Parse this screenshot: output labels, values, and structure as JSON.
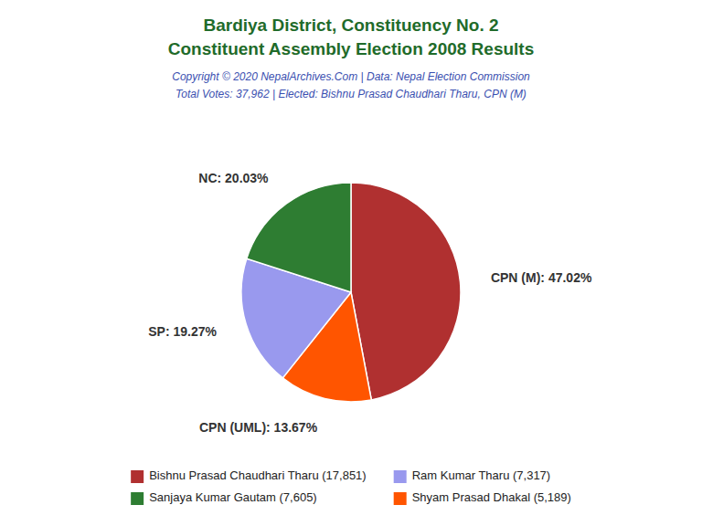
{
  "chart_data": {
    "type": "pie",
    "title": [
      "Bardiya District, Constituency No. 2",
      "Constituent Assembly Election 2008 Results"
    ],
    "subtitle": [
      "Copyright © 2020 NepalArchives.Com | Data: Nepal Election Commission",
      "Total Votes: 37,962 | Elected: Bishnu Prasad Chaudhari Tharu, CPN (M)"
    ],
    "values": [
      47.02,
      13.67,
      19.27,
      20.03
    ],
    "value_labels": [
      "CPN (M): 47.02%",
      "CPN (UML): 13.67%",
      "SP: 19.27%",
      "NC: 20.03%"
    ],
    "colors": [
      "#B03030",
      "#FF5500",
      "#9999EE",
      "#2E7D32"
    ],
    "data_labels": true,
    "legend": "bottom",
    "legend_labels": [
      "Bishnu Prasad Chaudhari Tharu (17,851)",
      "Ram Kumar Tharu (7,317)",
      "Sanjaya Kumar Gautam (7,605)",
      "Shyam Prasad Dhakal (5,189)"
    ],
    "legend_colors": [
      "#B03030",
      "#9999EE",
      "#2E7D32",
      "#FF5500"
    ]
  }
}
